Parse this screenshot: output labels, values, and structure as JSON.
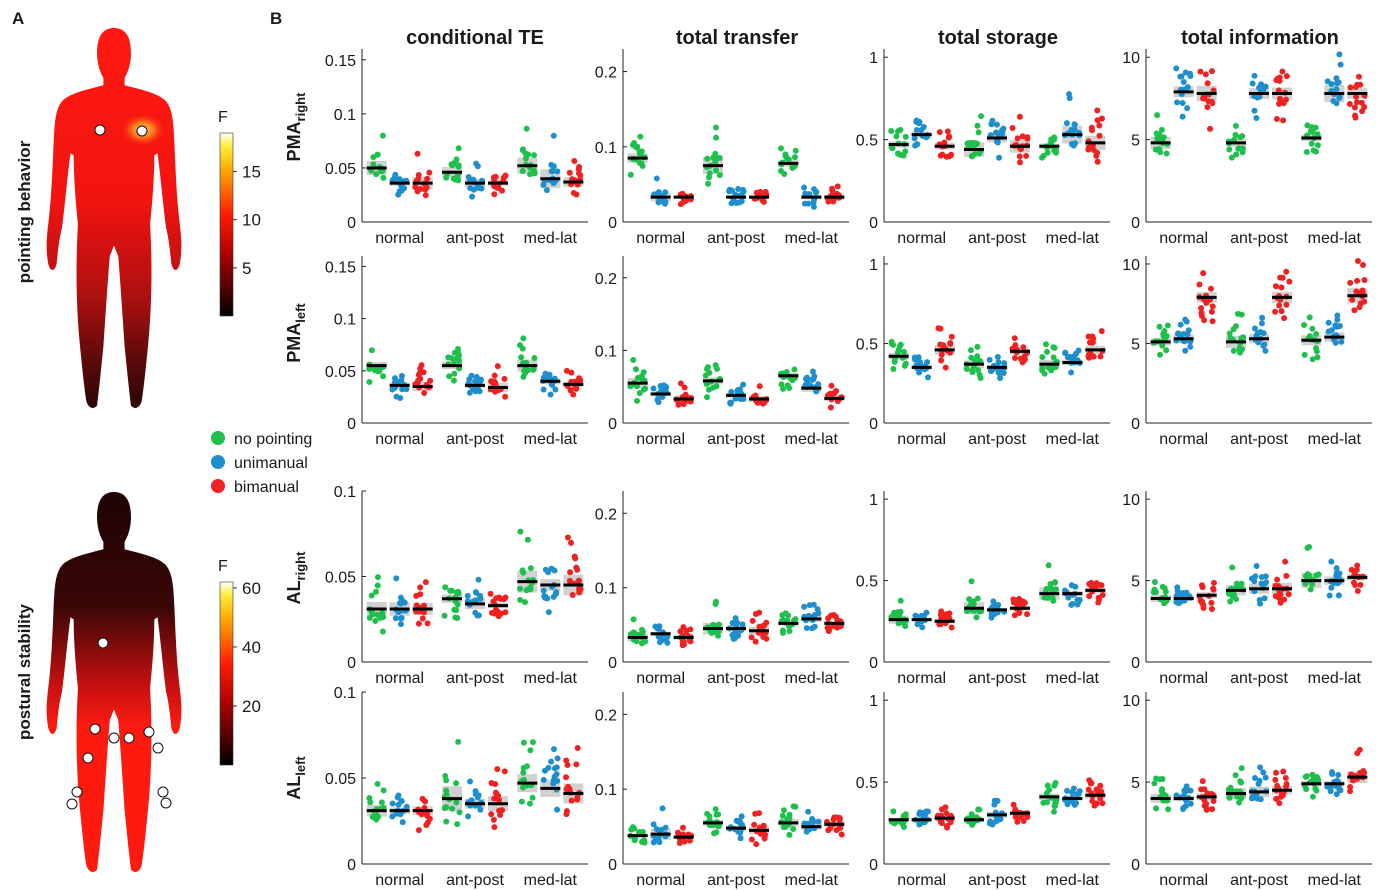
{
  "panel_labels": [
    "A",
    "B"
  ],
  "panel_a": {
    "top": {
      "label": "pointing behavior",
      "colorbar_title": "F",
      "colorbar_ticks": [
        "15",
        "10",
        "5"
      ],
      "colorbar_max": 19,
      "highlight": "chest (right of sternum)"
    },
    "bottom": {
      "label": "postural stability",
      "colorbar_title": "F",
      "colorbar_ticks": [
        "60",
        "40",
        "20"
      ],
      "colorbar_max": 62,
      "highlight": "lower trunk and legs"
    }
  },
  "legend": [
    {
      "label": "no pointing",
      "color": "#1fbf4d"
    },
    {
      "label": "unimanual",
      "color": "#1e8fcc"
    },
    {
      "label": "bimanual",
      "color": "#ee2222"
    }
  ],
  "column_titles": [
    "conditional TE",
    "total transfer",
    "total storage",
    "total information"
  ],
  "rows": [
    {
      "label": "PMA",
      "sub": "right"
    },
    {
      "label": "PMA",
      "sub": "left"
    },
    {
      "label": "AL",
      "sub": "right"
    },
    {
      "label": "AL",
      "sub": "left"
    }
  ],
  "chart_data": {
    "type": "scatter",
    "categories": [
      "normal",
      "ant-post",
      "med-lat"
    ],
    "series": [
      {
        "name": "no pointing",
        "color": "#1fbf4d"
      },
      {
        "name": "unimanual",
        "color": "#1e8fcc"
      },
      {
        "name": "bimanual",
        "color": "#ee2222"
      }
    ],
    "axes": [
      [
        {
          "ylim": [
            0,
            0.16
          ],
          "yticks": [
            "0",
            "0.05",
            "0.1",
            "0.15"
          ],
          "tickvals": [
            0,
            0.05,
            0.1,
            0.15
          ],
          "means": [
            [
              0.05,
              0.036,
              0.036
            ],
            [
              0.046,
              0.036,
              0.036
            ],
            [
              0.052,
              0.04,
              0.037
            ]
          ]
        },
        {
          "ylim": [
            0,
            0.23
          ],
          "yticks": [
            "0",
            "0.1",
            "0.2"
          ],
          "tickvals": [
            0,
            0.1,
            0.2
          ],
          "means": [
            [
              0.085,
              0.033,
              0.033
            ],
            [
              0.075,
              0.033,
              0.033
            ],
            [
              0.078,
              0.033,
              0.033
            ]
          ]
        },
        {
          "ylim": [
            0,
            1.05
          ],
          "yticks": [
            "0",
            "0.5",
            "1"
          ],
          "tickvals": [
            0,
            0.5,
            1
          ],
          "means": [
            [
              0.47,
              0.53,
              0.46
            ],
            [
              0.44,
              0.51,
              0.46
            ],
            [
              0.46,
              0.53,
              0.48
            ]
          ]
        },
        {
          "ylim": [
            0,
            10.5
          ],
          "yticks": [
            "0",
            "5",
            "10"
          ],
          "tickvals": [
            0,
            5,
            10
          ],
          "means": [
            [
              4.8,
              7.9,
              7.8
            ],
            [
              4.8,
              7.8,
              7.8
            ],
            [
              5.1,
              7.8,
              7.8
            ]
          ]
        }
      ],
      [
        {
          "ylim": [
            0,
            0.16
          ],
          "yticks": [
            "0",
            "0.05",
            "0.1",
            "0.15"
          ],
          "tickvals": [
            0,
            0.05,
            0.1,
            0.15
          ],
          "means": [
            [
              0.055,
              0.036,
              0.035
            ],
            [
              0.055,
              0.036,
              0.034
            ],
            [
              0.055,
              0.04,
              0.037
            ]
          ]
        },
        {
          "ylim": [
            0,
            0.23
          ],
          "yticks": [
            "0",
            "0.1",
            "0.2"
          ],
          "tickvals": [
            0,
            0.1,
            0.2
          ],
          "means": [
            [
              0.055,
              0.04,
              0.033
            ],
            [
              0.058,
              0.038,
              0.033
            ],
            [
              0.065,
              0.048,
              0.034
            ]
          ]
        },
        {
          "ylim": [
            0,
            1.05
          ],
          "yticks": [
            "0",
            "0.5",
            "1"
          ],
          "tickvals": [
            0,
            0.5,
            1
          ],
          "means": [
            [
              0.42,
              0.35,
              0.46
            ],
            [
              0.37,
              0.35,
              0.45
            ],
            [
              0.37,
              0.38,
              0.46
            ]
          ]
        },
        {
          "ylim": [
            0,
            10.5
          ],
          "yticks": [
            "0",
            "5",
            "10"
          ],
          "tickvals": [
            0,
            5,
            10
          ],
          "means": [
            [
              5.1,
              5.3,
              7.9
            ],
            [
              5.1,
              5.3,
              7.9
            ],
            [
              5.2,
              5.4,
              8.0
            ]
          ]
        }
      ],
      [
        {
          "ylim": [
            0,
            0.1
          ],
          "yticks": [
            "0",
            "0.05",
            "0.1"
          ],
          "tickvals": [
            0,
            0.05,
            0.1
          ],
          "means": [
            [
              0.031,
              0.031,
              0.031
            ],
            [
              0.037,
              0.034,
              0.033
            ],
            [
              0.047,
              0.045,
              0.045
            ]
          ]
        },
        {
          "ylim": [
            0,
            0.23
          ],
          "yticks": [
            "0",
            "0.1",
            "0.2"
          ],
          "tickvals": [
            0,
            0.1,
            0.2
          ],
          "means": [
            [
              0.033,
              0.038,
              0.033
            ],
            [
              0.045,
              0.045,
              0.042
            ],
            [
              0.052,
              0.058,
              0.052
            ]
          ]
        },
        {
          "ylim": [
            0,
            1.05
          ],
          "yticks": [
            "0",
            "0.5",
            "1"
          ],
          "tickvals": [
            0,
            0.5,
            1
          ],
          "means": [
            [
              0.26,
              0.26,
              0.25
            ],
            [
              0.33,
              0.32,
              0.33
            ],
            [
              0.42,
              0.42,
              0.44
            ]
          ]
        },
        {
          "ylim": [
            0,
            10.5
          ],
          "yticks": [
            "0",
            "5",
            "10"
          ],
          "tickvals": [
            0,
            5,
            10
          ],
          "means": [
            [
              3.9,
              3.9,
              4.1
            ],
            [
              4.4,
              4.5,
              4.5
            ],
            [
              5.0,
              5.0,
              5.2
            ]
          ]
        }
      ],
      [
        {
          "ylim": [
            0,
            0.1
          ],
          "yticks": [
            "0",
            "0.05",
            "0.1"
          ],
          "tickvals": [
            0,
            0.05,
            0.1
          ],
          "means": [
            [
              0.031,
              0.031,
              0.031
            ],
            [
              0.038,
              0.035,
              0.035
            ],
            [
              0.047,
              0.044,
              0.041
            ]
          ]
        },
        {
          "ylim": [
            0,
            0.23
          ],
          "yticks": [
            "0",
            "0.1",
            "0.2"
          ],
          "tickvals": [
            0,
            0.1,
            0.2
          ],
          "means": [
            [
              0.038,
              0.04,
              0.036
            ],
            [
              0.055,
              0.048,
              0.045
            ],
            [
              0.055,
              0.05,
              0.053
            ]
          ]
        },
        {
          "ylim": [
            0,
            1.05
          ],
          "yticks": [
            "0",
            "0.5",
            "1"
          ],
          "tickvals": [
            0,
            0.5,
            1
          ],
          "means": [
            [
              0.27,
              0.27,
              0.28
            ],
            [
              0.27,
              0.3,
              0.31
            ],
            [
              0.41,
              0.4,
              0.42
            ]
          ]
        },
        {
          "ylim": [
            0,
            10.5
          ],
          "yticks": [
            "0",
            "5",
            "10"
          ],
          "tickvals": [
            0,
            5,
            10
          ],
          "means": [
            [
              4.0,
              4.0,
              4.1
            ],
            [
              4.3,
              4.4,
              4.5
            ],
            [
              4.9,
              4.9,
              5.3
            ]
          ]
        }
      ]
    ]
  }
}
